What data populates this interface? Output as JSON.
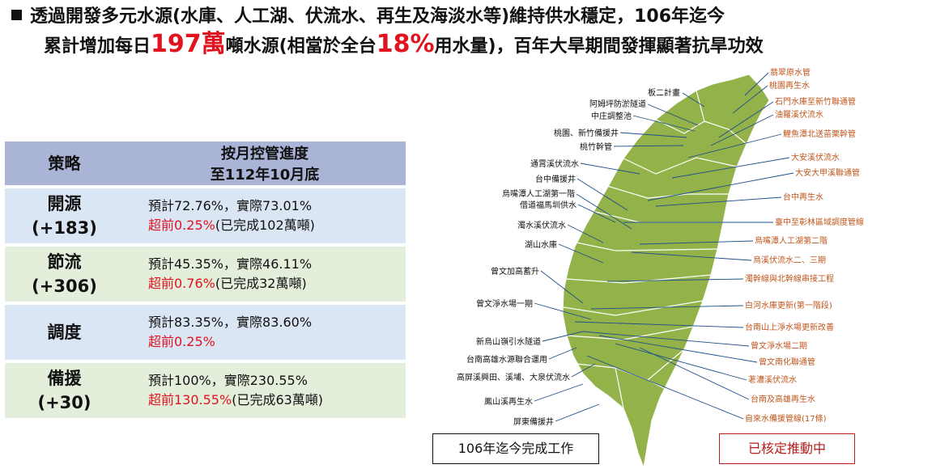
{
  "headline": {
    "line1": "透過開發多元水源(水庫、人工湖、伏流水、再生及海淡水等)維持供水穩定，106年迄今",
    "line2_pre": "累計增加每日",
    "line2_value": "197萬",
    "line2_mid": "噸水源(相當於全台",
    "line2_pct": "18%",
    "line2_post": "用水量)，百年大旱期間發揮顯著抗旱功效"
  },
  "table": {
    "header_col1": "策略",
    "header_col2_line1": "按月控管進度",
    "header_col2_line2": "至112年10月底",
    "rows": [
      {
        "name": "開源",
        "amount": "(+183)",
        "progress": "預計72.76%，實際73.01%",
        "ahead": "超前0.25%",
        "note": "(已完成102萬噸)"
      },
      {
        "name": "節流",
        "amount": "(+306)",
        "progress": "預計45.35%，實際46.11%",
        "ahead": "超前0.76%",
        "note": "(已完成32萬噸)"
      },
      {
        "name": "調度",
        "amount": "",
        "progress": "預計83.35%，實際83.60%",
        "ahead": "超前0.25%",
        "note": ""
      },
      {
        "name": "備援",
        "amount": "(+30)",
        "progress": "預計100%，實際230.55%",
        "ahead": "超前130.55%",
        "note": "(已完成63萬噸)"
      }
    ]
  },
  "map": {
    "left_labels": [
      "板二計畫",
      "阿姆坪防淤隧道",
      "中庄調整池",
      "桃園、新竹備援井",
      "桃竹幹管",
      "通霄溪伏流水",
      "台中備援井",
      "烏嘴潭人工湖第一階",
      "借道福馬圳供水",
      "濁水溪伏流水",
      "湖山水庫",
      "曾文加高蓄升",
      "曾文淨水場一期",
      "新烏山嶺引水隧道",
      "台南高雄水源聯合運用",
      "高屏溪興田、溪埔、大泉伏流水",
      "鳳山溪再生水",
      "屏東備援井"
    ],
    "right_labels": [
      "翡翠原水管",
      "桃園再生水",
      "石門水庫至新竹聯通管",
      "油羅溪伏流水",
      "鯉魚潭北送苗栗幹管",
      "大安溪伏流水",
      "大安大甲溪聯通管",
      "台中再生水",
      "臺中至彰林區域調度管線",
      "烏嘴潭人工湖第二階",
      "烏溪伏流水二、三期",
      "濁幹線與北幹線串接工程",
      "白河水庫更新(第一階段)",
      "台南山上淨水場更新改善",
      "曾文淨水場二期",
      "曾文南化聯通管",
      "荖濃溪伏流水",
      "台南及高雄再生水",
      "自來水備援管線(17條)"
    ],
    "colors": {
      "land": "#93b24a",
      "label_done": "#111111",
      "label_push": "#c0561d"
    }
  },
  "legend": {
    "done": "106年迄今完成工作",
    "push": "已核定推動中"
  }
}
